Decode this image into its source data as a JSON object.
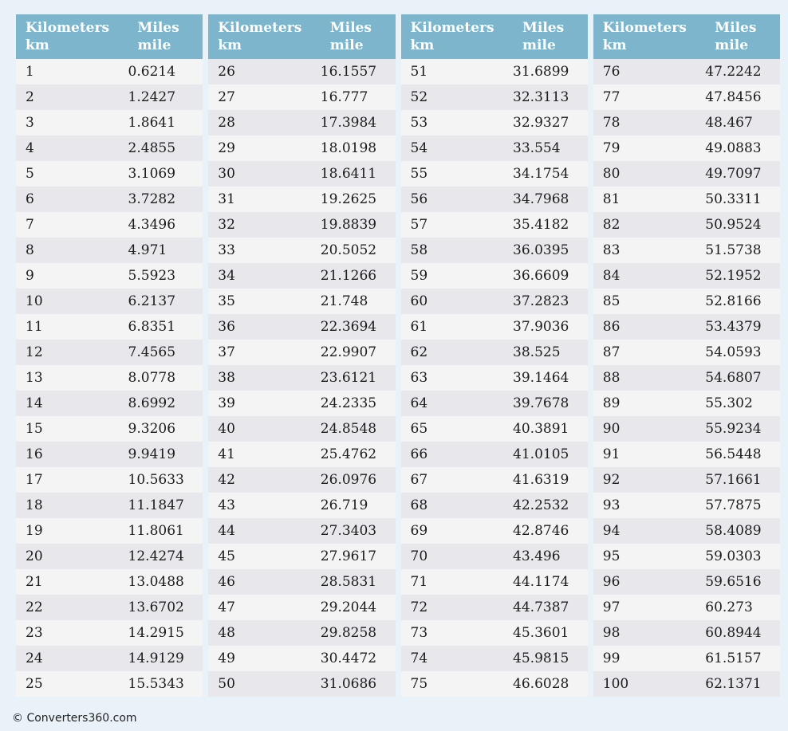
{
  "page": {
    "background_color": "#e9f2f8",
    "header_bg_color": "#7db5cc",
    "header_text_color": "#ffffff",
    "row_light_color": "#f4f4f4",
    "row_dark_color": "#e8e8ec",
    "body_text_color": "#1b1b1b"
  },
  "header": {
    "col_km_line1": "Kilometers",
    "col_km_line2": "km",
    "col_mile_line1": "Miles",
    "col_mile_line2": "mile"
  },
  "footer": {
    "copyright": "© Converters360.com"
  },
  "chart_data": {
    "type": "table",
    "title": "Kilometers to Miles conversion table",
    "columns": [
      "Kilometers km",
      "Miles mile"
    ],
    "rows_per_table": 25,
    "rows": [
      [
        1,
        "0.6214"
      ],
      [
        2,
        "1.2427"
      ],
      [
        3,
        "1.8641"
      ],
      [
        4,
        "2.4855"
      ],
      [
        5,
        "3.1069"
      ],
      [
        6,
        "3.7282"
      ],
      [
        7,
        "4.3496"
      ],
      [
        8,
        "4.971"
      ],
      [
        9,
        "5.5923"
      ],
      [
        10,
        "6.2137"
      ],
      [
        11,
        "6.8351"
      ],
      [
        12,
        "7.4565"
      ],
      [
        13,
        "8.0778"
      ],
      [
        14,
        "8.6992"
      ],
      [
        15,
        "9.3206"
      ],
      [
        16,
        "9.9419"
      ],
      [
        17,
        "10.5633"
      ],
      [
        18,
        "11.1847"
      ],
      [
        19,
        "11.8061"
      ],
      [
        20,
        "12.4274"
      ],
      [
        21,
        "13.0488"
      ],
      [
        22,
        "13.6702"
      ],
      [
        23,
        "14.2915"
      ],
      [
        24,
        "14.9129"
      ],
      [
        25,
        "15.5343"
      ],
      [
        26,
        "16.1557"
      ],
      [
        27,
        "16.777"
      ],
      [
        28,
        "17.3984"
      ],
      [
        29,
        "18.0198"
      ],
      [
        30,
        "18.6411"
      ],
      [
        31,
        "19.2625"
      ],
      [
        32,
        "19.8839"
      ],
      [
        33,
        "20.5052"
      ],
      [
        34,
        "21.1266"
      ],
      [
        35,
        "21.748"
      ],
      [
        36,
        "22.3694"
      ],
      [
        37,
        "22.9907"
      ],
      [
        38,
        "23.6121"
      ],
      [
        39,
        "24.2335"
      ],
      [
        40,
        "24.8548"
      ],
      [
        41,
        "25.4762"
      ],
      [
        42,
        "26.0976"
      ],
      [
        43,
        "26.719"
      ],
      [
        44,
        "27.3403"
      ],
      [
        45,
        "27.9617"
      ],
      [
        46,
        "28.5831"
      ],
      [
        47,
        "29.2044"
      ],
      [
        48,
        "29.8258"
      ],
      [
        49,
        "30.4472"
      ],
      [
        50,
        "31.0686"
      ],
      [
        51,
        "31.6899"
      ],
      [
        52,
        "32.3113"
      ],
      [
        53,
        "32.9327"
      ],
      [
        54,
        "33.554"
      ],
      [
        55,
        "34.1754"
      ],
      [
        56,
        "34.7968"
      ],
      [
        57,
        "35.4182"
      ],
      [
        58,
        "36.0395"
      ],
      [
        59,
        "36.6609"
      ],
      [
        60,
        "37.2823"
      ],
      [
        61,
        "37.9036"
      ],
      [
        62,
        "38.525"
      ],
      [
        63,
        "39.1464"
      ],
      [
        64,
        "39.7678"
      ],
      [
        65,
        "40.3891"
      ],
      [
        66,
        "41.0105"
      ],
      [
        67,
        "41.6319"
      ],
      [
        68,
        "42.2532"
      ],
      [
        69,
        "42.8746"
      ],
      [
        70,
        "43.496"
      ],
      [
        71,
        "44.1174"
      ],
      [
        72,
        "44.7387"
      ],
      [
        73,
        "45.3601"
      ],
      [
        74,
        "45.9815"
      ],
      [
        75,
        "46.6028"
      ],
      [
        76,
        "47.2242"
      ],
      [
        77,
        "47.8456"
      ],
      [
        78,
        "48.467"
      ],
      [
        79,
        "49.0883"
      ],
      [
        80,
        "49.7097"
      ],
      [
        81,
        "50.3311"
      ],
      [
        82,
        "50.9524"
      ],
      [
        83,
        "51.5738"
      ],
      [
        84,
        "52.1952"
      ],
      [
        85,
        "52.8166"
      ],
      [
        86,
        "53.4379"
      ],
      [
        87,
        "54.0593"
      ],
      [
        88,
        "54.6807"
      ],
      [
        89,
        "55.302"
      ],
      [
        90,
        "55.9234"
      ],
      [
        91,
        "56.5448"
      ],
      [
        92,
        "57.1661"
      ],
      [
        93,
        "57.7875"
      ],
      [
        94,
        "58.4089"
      ],
      [
        95,
        "59.0303"
      ],
      [
        96,
        "59.6516"
      ],
      [
        97,
        "60.273"
      ],
      [
        98,
        "60.8944"
      ],
      [
        99,
        "61.5157"
      ],
      [
        100,
        "62.1371"
      ]
    ]
  }
}
